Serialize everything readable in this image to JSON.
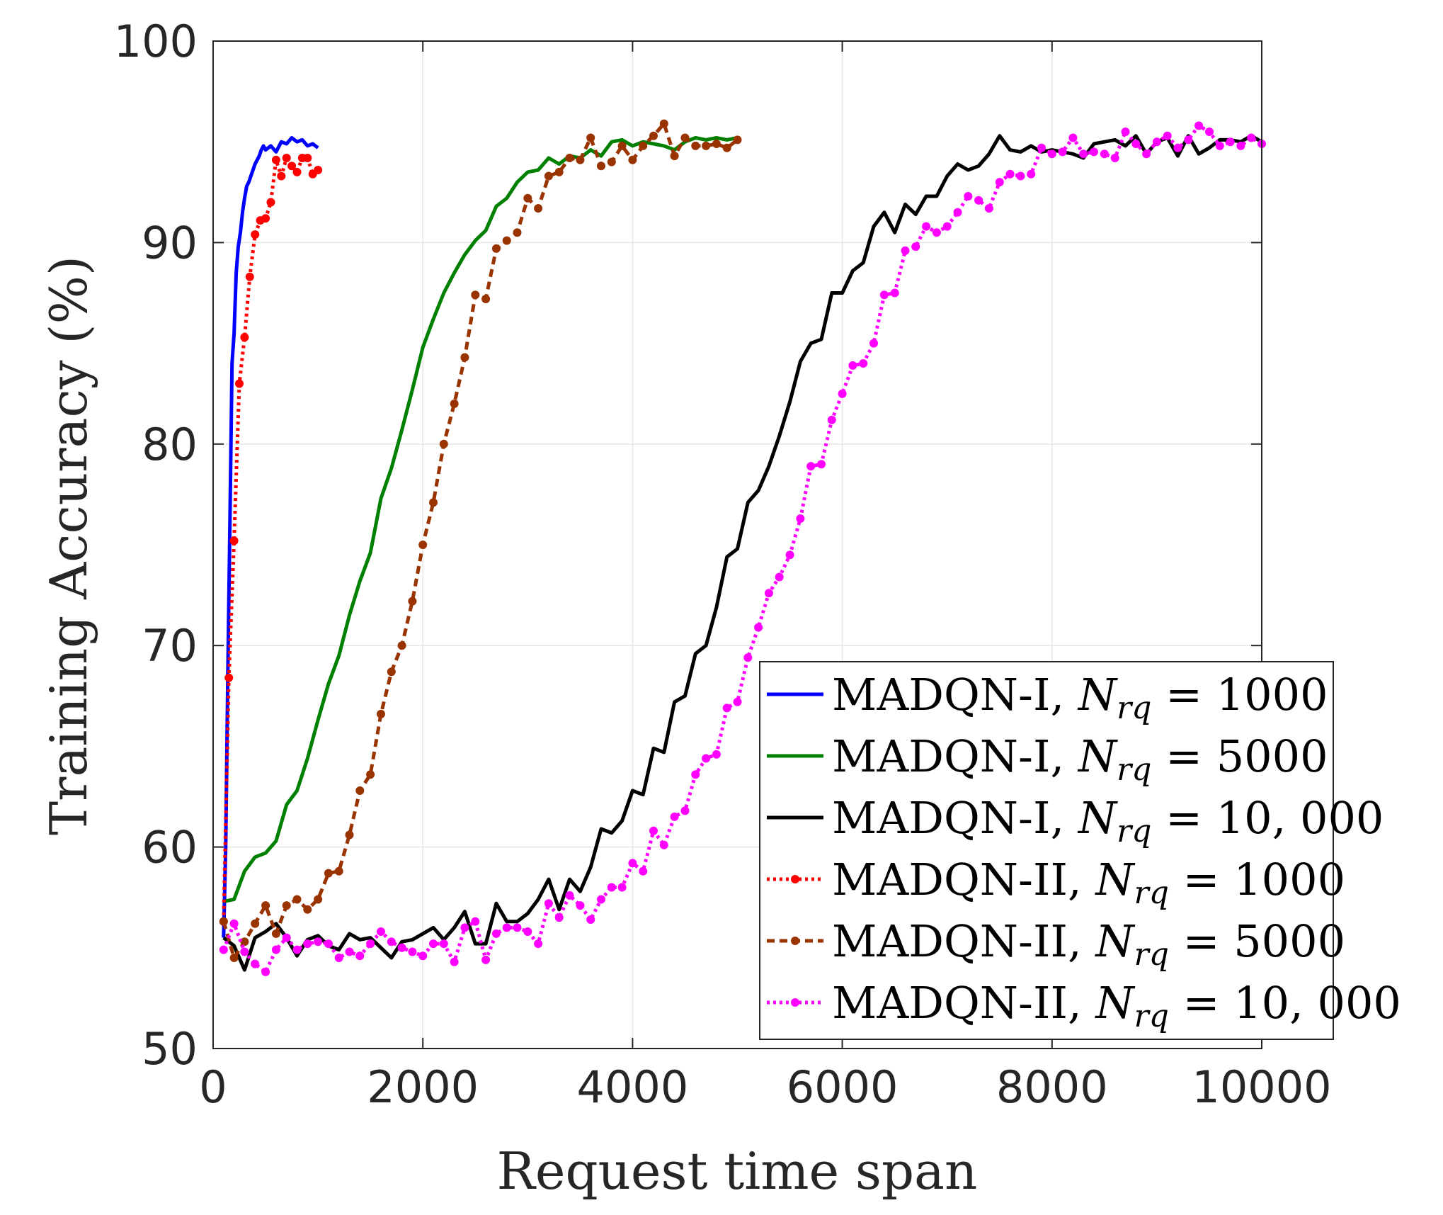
{
  "chart_data": {
    "type": "line",
    "title": "",
    "xlabel": "Request time span",
    "ylabel": "Training Accuracy (%)",
    "xlim": [
      0,
      10000
    ],
    "ylim": [
      50,
      100
    ],
    "xticks": [
      0,
      2000,
      4000,
      6000,
      8000,
      10000
    ],
    "yticks": [
      50,
      60,
      70,
      80,
      90,
      100
    ],
    "xtick_labels": [
      "0",
      "2000",
      "4000",
      "6000",
      "8000",
      "10000"
    ],
    "ytick_labels": [
      "50",
      "60",
      "70",
      "80",
      "90",
      "100"
    ],
    "grid": true,
    "legend_position": "lower-right",
    "series": [
      {
        "name": "MADQN-I, N_rq = 1000",
        "legend_prefix": "MADQN-I,",
        "legend_var": "N",
        "legend_sub": "rq",
        "legend_value": "= 1000",
        "color": "#0000ff",
        "style": "solid",
        "markers": false,
        "x": [
          100,
          120,
          140,
          160,
          180,
          200,
          220,
          240,
          260,
          280,
          300,
          320,
          340,
          360,
          380,
          400,
          420,
          440,
          460,
          480,
          500,
          550,
          600,
          650,
          700,
          750,
          800,
          850,
          900,
          950,
          1000
        ],
        "y": [
          55.5,
          60.0,
          68.5,
          76.0,
          84.0,
          85.5,
          88.5,
          89.8,
          90.5,
          91.5,
          92.2,
          92.8,
          93.0,
          93.3,
          93.6,
          93.9,
          94.1,
          94.3,
          94.6,
          94.8,
          94.6,
          94.8,
          94.5,
          95.0,
          94.9,
          95.2,
          95.0,
          95.1,
          94.8,
          94.9,
          94.7
        ]
      },
      {
        "name": "MADQN-I, N_rq = 5000",
        "legend_prefix": "MADQN-I,",
        "legend_var": "N",
        "legend_sub": "rq",
        "legend_value": "= 5000",
        "color": "#008000",
        "style": "solid",
        "markers": false,
        "x": [
          100,
          200,
          300,
          400,
          500,
          600,
          700,
          800,
          900,
          1000,
          1100,
          1200,
          1300,
          1400,
          1500,
          1600,
          1700,
          1800,
          1900,
          2000,
          2100,
          2200,
          2300,
          2400,
          2500,
          2600,
          2700,
          2800,
          2900,
          3000,
          3100,
          3200,
          3300,
          3400,
          3500,
          3600,
          3700,
          3800,
          3900,
          4000,
          4100,
          4200,
          4300,
          4400,
          4500,
          4600,
          4700,
          4800,
          4900,
          5000
        ],
        "y": [
          57.3,
          57.4,
          58.8,
          59.5,
          59.7,
          60.3,
          62.1,
          62.8,
          64.4,
          66.3,
          68.1,
          69.5,
          71.5,
          73.2,
          74.6,
          77.3,
          78.8,
          80.7,
          82.7,
          84.8,
          86.2,
          87.5,
          88.5,
          89.4,
          90.1,
          90.6,
          91.8,
          92.2,
          93.0,
          93.5,
          93.6,
          94.2,
          93.9,
          94.3,
          94.2,
          94.6,
          94.3,
          95.0,
          95.1,
          94.8,
          95.0,
          94.9,
          94.8,
          94.6,
          95.0,
          95.2,
          95.1,
          95.2,
          95.1,
          95.2
        ]
      },
      {
        "name": "MADQN-I, N_rq = 10,000",
        "legend_prefix": "MADQN-I,",
        "legend_var": "N",
        "legend_sub": "rq",
        "legend_value": "= 10, 000",
        "color": "#000000",
        "style": "solid",
        "markers": false,
        "x": [
          100,
          200,
          300,
          400,
          500,
          600,
          700,
          800,
          900,
          1000,
          1100,
          1200,
          1300,
          1400,
          1500,
          1600,
          1700,
          1800,
          1900,
          2000,
          2100,
          2200,
          2300,
          2400,
          2500,
          2600,
          2700,
          2800,
          2900,
          3000,
          3100,
          3200,
          3300,
          3400,
          3500,
          3600,
          3700,
          3800,
          3900,
          4000,
          4100,
          4200,
          4300,
          4400,
          4500,
          4600,
          4700,
          4800,
          4900,
          5000,
          5100,
          5200,
          5300,
          5400,
          5500,
          5600,
          5700,
          5800,
          5900,
          6000,
          6100,
          6200,
          6300,
          6400,
          6500,
          6600,
          6700,
          6800,
          6900,
          7000,
          7100,
          7200,
          7300,
          7400,
          7500,
          7600,
          7700,
          7800,
          7900,
          8000,
          8100,
          8200,
          8300,
          8400,
          8500,
          8600,
          8700,
          8800,
          8900,
          9000,
          9100,
          9200,
          9300,
          9400,
          9500,
          9600,
          9700,
          9800,
          9900,
          10000
        ],
        "y": [
          55.5,
          55.1,
          53.9,
          55.5,
          55.8,
          56.2,
          55.5,
          54.6,
          55.4,
          55.6,
          55.1,
          54.9,
          55.7,
          55.4,
          55.5,
          55.0,
          54.5,
          55.3,
          55.4,
          55.7,
          56.0,
          55.4,
          56.0,
          56.8,
          55.2,
          55.2,
          57.2,
          56.3,
          56.3,
          56.7,
          57.4,
          58.4,
          56.9,
          58.4,
          57.8,
          59.0,
          60.9,
          60.7,
          61.3,
          62.8,
          62.6,
          64.9,
          64.7,
          67.2,
          67.5,
          69.6,
          70.0,
          71.9,
          74.4,
          74.8,
          77.1,
          77.7,
          78.9,
          80.4,
          82.1,
          84.1,
          85.0,
          85.2,
          87.5,
          87.5,
          88.6,
          89.0,
          90.8,
          91.5,
          90.5,
          91.9,
          91.4,
          92.3,
          92.3,
          93.3,
          93.9,
          93.6,
          93.8,
          94.4,
          95.3,
          94.6,
          94.5,
          94.8,
          94.5,
          94.6,
          94.5,
          94.4,
          94.2,
          94.9,
          95.0,
          95.1,
          94.8,
          95.3,
          94.4,
          95.0,
          95.2,
          94.3,
          95.3,
          94.4,
          94.7,
          95.1,
          95.1,
          95.0,
          95.3,
          95.0
        ]
      },
      {
        "name": "MADQN-II, N_rq = 1000",
        "legend_prefix": "MADQN-II,",
        "legend_var": "N",
        "legend_sub": "rq",
        "legend_value": "= 1000",
        "color": "#ff0000",
        "style": "dotted",
        "markers": true,
        "x": [
          100,
          150,
          200,
          250,
          300,
          350,
          400,
          450,
          500,
          550,
          600,
          650,
          700,
          750,
          800,
          850,
          900,
          950,
          1000
        ],
        "y": [
          56.3,
          68.4,
          75.2,
          83.0,
          85.3,
          88.3,
          90.4,
          91.1,
          91.2,
          92.0,
          94.1,
          93.3,
          94.2,
          93.8,
          93.5,
          94.2,
          94.2,
          93.4,
          93.6
        ]
      },
      {
        "name": "MADQN-II, N_rq = 5000",
        "legend_prefix": "MADQN-II,",
        "legend_var": "N",
        "legend_sub": "rq",
        "legend_value": "= 5000",
        "color": "#993300",
        "style": "dashed",
        "markers": true,
        "x": [
          100,
          200,
          300,
          400,
          500,
          600,
          700,
          800,
          900,
          1000,
          1100,
          1200,
          1300,
          1400,
          1500,
          1600,
          1700,
          1800,
          1900,
          2000,
          2100,
          2200,
          2300,
          2400,
          2500,
          2600,
          2700,
          2800,
          2900,
          3000,
          3100,
          3200,
          3300,
          3400,
          3500,
          3600,
          3700,
          3800,
          3900,
          4000,
          4100,
          4200,
          4300,
          4400,
          4500,
          4600,
          4700,
          4800,
          4900,
          5000
        ],
        "y": [
          56.3,
          54.5,
          55.3,
          56.2,
          57.1,
          55.7,
          57.1,
          57.4,
          56.9,
          57.4,
          58.7,
          58.8,
          60.6,
          62.8,
          63.6,
          66.6,
          68.7,
          70.0,
          72.2,
          75.0,
          77.1,
          80.0,
          82.0,
          84.3,
          87.4,
          87.2,
          89.7,
          90.1,
          90.5,
          92.2,
          91.7,
          93.3,
          93.5,
          94.2,
          94.1,
          95.2,
          93.8,
          94.0,
          94.8,
          94.1,
          94.8,
          95.3,
          95.9,
          94.3,
          95.2,
          94.8,
          94.8,
          94.9,
          94.7,
          95.1
        ]
      },
      {
        "name": "MADQN-II, N_rq = 10,000",
        "legend_prefix": "MADQN-II,",
        "legend_var": "N",
        "legend_sub": "rq",
        "legend_value": "= 10, 000",
        "color": "#ff00ff",
        "style": "dotted",
        "markers": true,
        "x": [
          100,
          200,
          300,
          400,
          500,
          600,
          700,
          800,
          900,
          1000,
          1100,
          1200,
          1300,
          1400,
          1500,
          1600,
          1700,
          1800,
          1900,
          2000,
          2100,
          2200,
          2300,
          2400,
          2500,
          2600,
          2700,
          2800,
          2900,
          3000,
          3100,
          3200,
          3300,
          3400,
          3500,
          3600,
          3700,
          3800,
          3900,
          4000,
          4100,
          4200,
          4300,
          4400,
          4500,
          4600,
          4700,
          4800,
          4900,
          5000,
          5100,
          5200,
          5300,
          5400,
          5500,
          5600,
          5700,
          5800,
          5900,
          6000,
          6100,
          6200,
          6300,
          6400,
          6500,
          6600,
          6700,
          6800,
          6900,
          7000,
          7100,
          7200,
          7300,
          7400,
          7500,
          7600,
          7700,
          7800,
          7900,
          8000,
          8100,
          8200,
          8300,
          8400,
          8500,
          8600,
          8700,
          8800,
          8900,
          9000,
          9100,
          9200,
          9300,
          9400,
          9500,
          9600,
          9700,
          9800,
          9900,
          10000
        ],
        "y": [
          54.9,
          56.2,
          54.8,
          54.2,
          53.8,
          54.9,
          55.5,
          54.9,
          55.2,
          55.3,
          55.2,
          54.5,
          54.8,
          54.6,
          55.2,
          55.8,
          55.3,
          55.0,
          54.8,
          54.6,
          55.2,
          55.2,
          54.3,
          56.0,
          56.3,
          54.4,
          55.7,
          56.0,
          56.0,
          55.8,
          55.2,
          57.2,
          56.5,
          57.6,
          57.1,
          56.4,
          57.4,
          58.0,
          58.0,
          59.2,
          58.8,
          60.8,
          60.1,
          61.5,
          61.8,
          63.6,
          64.4,
          64.6,
          66.9,
          67.2,
          69.4,
          70.9,
          72.6,
          73.4,
          74.5,
          76.3,
          78.9,
          79.0,
          81.2,
          82.5,
          83.9,
          84.0,
          85.0,
          87.4,
          87.5,
          89.6,
          89.8,
          90.8,
          90.5,
          90.8,
          91.5,
          92.3,
          92.1,
          91.7,
          93.0,
          93.4,
          93.3,
          93.4,
          94.7,
          94.4,
          94.5,
          95.2,
          94.4,
          94.5,
          94.4,
          94.2,
          95.5,
          94.9,
          94.4,
          95.0,
          95.3,
          94.7,
          95.1,
          95.8,
          95.5,
          94.8,
          95.0,
          94.8,
          95.2,
          94.9
        ]
      }
    ]
  }
}
